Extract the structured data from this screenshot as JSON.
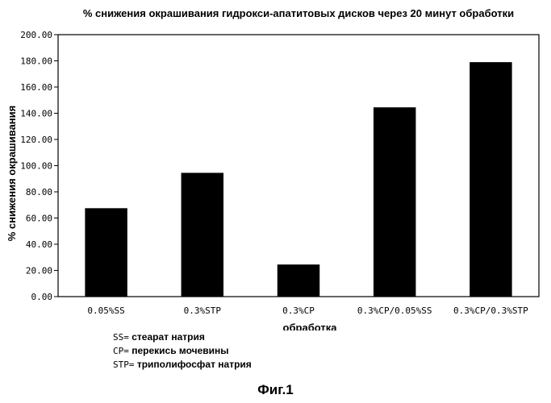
{
  "chart_data": {
    "type": "bar",
    "title": "% снижения окрашивания гидрокси-апатитовых дисков через 20 минут обработки",
    "xlabel": "обработка",
    "ylabel": "% снижения окрашивания",
    "categories": [
      "0.05%SS",
      "0.3%STP",
      "0.3%CP",
      "0.3%CP/0.05%SS",
      "0.3%CP/0.3%STP"
    ],
    "values": [
      67.5,
      94.5,
      24.5,
      144.5,
      179
    ],
    "ylim": [
      0,
      200
    ],
    "yticks": [
      "0.00",
      "20.00",
      "40.00",
      "60.00",
      "80.00",
      "100.00",
      "120.00",
      "140.00",
      "160.00",
      "180.00",
      "200.00"
    ],
    "grid": false,
    "bar_color": "#000000"
  },
  "legend": [
    {
      "abbr": "SS=",
      "desc": "стеарат натрия"
    },
    {
      "abbr": "CP=",
      "desc": "перекись мочевины"
    },
    {
      "abbr": "STP=",
      "desc": "триполифосфат натрия"
    }
  ],
  "figure_label": "Фиг.1"
}
